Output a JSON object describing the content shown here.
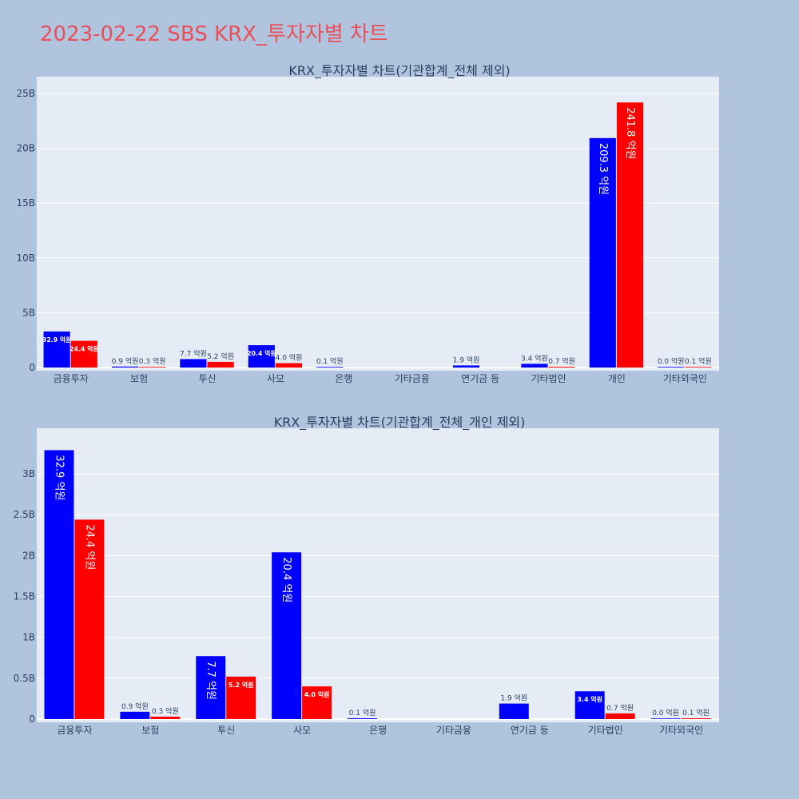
{
  "title": "2023-02-22 SBS KRX_투자자별 차트",
  "colors": {
    "series_a": "#0000ff",
    "series_b": "#ff0000",
    "plot_bg": "#e5ecf6",
    "page_bg": "#b0c4de",
    "title": "#e8505b"
  },
  "chart_data": [
    {
      "type": "bar",
      "title": "KRX_투자자별 차트(기관합계_전체 제외)",
      "categories": [
        "금융투자",
        "보험",
        "투신",
        "사모",
        "은행",
        "기타금융",
        "연기금 등",
        "기타법인",
        "개인",
        "기타외국인"
      ],
      "series": [
        {
          "color": "#0000ff",
          "values": [
            3290000000,
            90000000,
            770000000,
            2040000000,
            10000000,
            null,
            190000000,
            340000000,
            20930000000,
            0
          ],
          "labels": [
            "32.9 억원",
            "0.9 억원",
            "7.7 억원",
            "20.4 억원",
            "0.1 억원",
            "",
            "1.9 억원",
            "3.4 억원",
            "209.3 억원",
            "0.0 억원"
          ]
        },
        {
          "color": "#ff0000",
          "values": [
            2440000000,
            30000000,
            520000000,
            400000000,
            null,
            null,
            null,
            70000000,
            24180000000,
            10000000
          ],
          "labels": [
            "24.4 억원",
            "0.3 억원",
            "5.2 억원",
            "4.0 억원",
            "",
            "",
            "",
            "0.7 억원",
            "241.8 억원",
            "0.1 억원"
          ]
        }
      ],
      "ylim": [
        0,
        25800000000
      ],
      "yticks": [
        0,
        5000000000,
        10000000000,
        15000000000,
        20000000000,
        25000000000
      ],
      "ytick_labels": [
        "0",
        "5B",
        "10B",
        "15B",
        "20B",
        "25B"
      ],
      "xlabel": "",
      "ylabel": "",
      "grid": true
    },
    {
      "type": "bar",
      "title": "KRX_투자자별 차트(기관합계_전체_개인 제외)",
      "categories": [
        "금융투자",
        "보험",
        "투신",
        "사모",
        "은행",
        "기타금융",
        "연기금 등",
        "기타법인",
        "기타외국인"
      ],
      "series": [
        {
          "color": "#0000ff",
          "values": [
            3290000000,
            90000000,
            770000000,
            2040000000,
            10000000,
            null,
            190000000,
            340000000,
            0
          ],
          "labels": [
            "32.9 억원",
            "0.9 억원",
            "7.7 억원",
            "20.4 억원",
            "0.1 억원",
            "",
            "1.9 억원",
            "3.4 억원",
            "0.0 억원"
          ]
        },
        {
          "color": "#ff0000",
          "values": [
            2440000000,
            30000000,
            520000000,
            400000000,
            null,
            null,
            null,
            70000000,
            10000000
          ],
          "labels": [
            "24.4 억원",
            "0.3 억원",
            "5.2 억원",
            "4.0 억원",
            "",
            "",
            "",
            "0.7 억원",
            "0.1 억원"
          ]
        }
      ],
      "ylim": [
        0,
        3460000000
      ],
      "yticks": [
        0,
        500000000,
        1000000000,
        1500000000,
        2000000000,
        2500000000,
        3000000000
      ],
      "ytick_labels": [
        "0",
        "0.5B",
        "1B",
        "1.5B",
        "2B",
        "2.5B",
        "3B"
      ],
      "xlabel": "",
      "ylabel": "",
      "grid": true
    }
  ]
}
